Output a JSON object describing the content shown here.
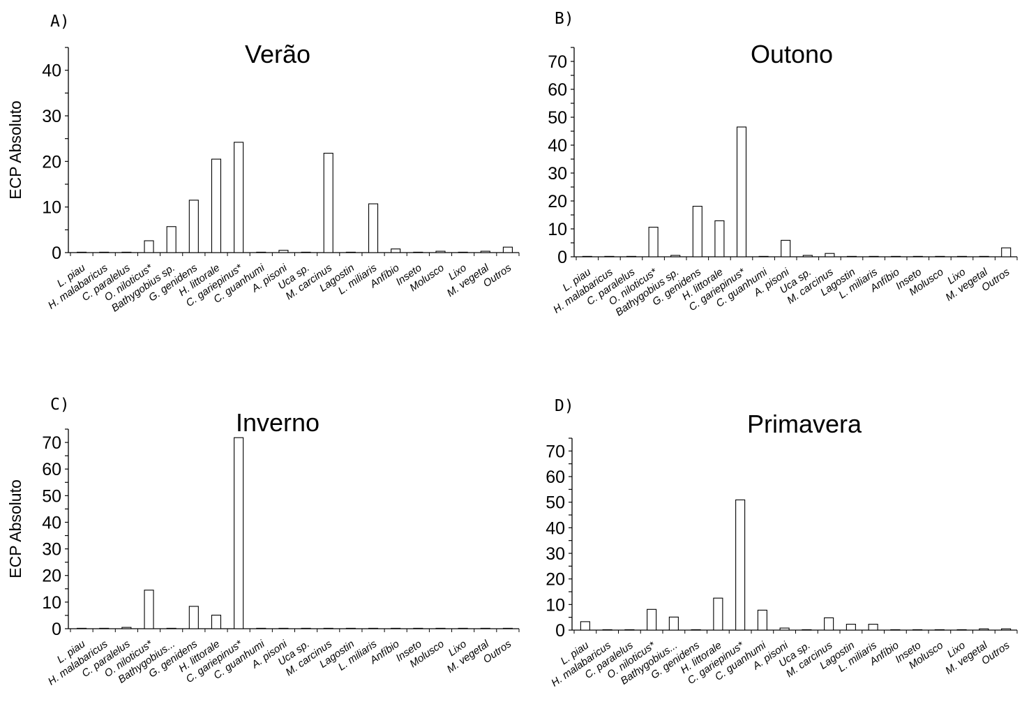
{
  "chart_data": [
    {
      "type": "bar",
      "panel": "A)",
      "title": "Verão",
      "ylabel": "ECP Absoluto",
      "ylim": [
        0,
        45
      ],
      "yticks": [
        0,
        10,
        20,
        30,
        40
      ],
      "categories": [
        "L. piau",
        "H. malabaricus",
        "C. paralelus",
        "O. niloticus*",
        "Bathygobius sp.",
        "G. genidens",
        "H. littorale",
        "C. gariepinus*",
        "C. guanhumi",
        "A. pisoni",
        "Uca sp.",
        "M. carcinus",
        "Lagostin",
        "L. miliaris",
        "Anfíbio",
        "Inseto",
        "Molusco",
        "Lixo",
        "M. vegetal",
        "Outros"
      ],
      "values": [
        0,
        0,
        0,
        2.6,
        5.7,
        11.5,
        20.5,
        24.2,
        0,
        0.5,
        0,
        21.8,
        0,
        10.7,
        0.8,
        0,
        0.3,
        0,
        0.3,
        1.2
      ]
    },
    {
      "type": "bar",
      "panel": "B)",
      "title": "Outono",
      "ylabel": "",
      "ylim": [
        0,
        75
      ],
      "yticks": [
        0,
        10,
        20,
        30,
        40,
        50,
        60,
        70
      ],
      "categories": [
        "L. piau",
        "H. malabaricus",
        "C. paralelus",
        "O. niloticus*",
        "Bathygobius sp.",
        "G. genidens",
        "H. littorale",
        "C. gariepinus*",
        "C. guanhumi",
        "A. pisoni",
        "Uca sp.",
        "M. carcinus",
        "Lagostin",
        "L. miliaris",
        "Anfíbio",
        "Inseto",
        "Molusco",
        "Lixo",
        "M. vegetal",
        "Outros"
      ],
      "values": [
        0,
        0,
        0,
        10.6,
        0.5,
        18.1,
        12.9,
        46.5,
        0,
        5.9,
        0.5,
        1.2,
        0,
        0,
        0,
        0,
        0,
        0,
        0,
        3.2
      ]
    },
    {
      "type": "bar",
      "panel": "C)",
      "title": "Inverno",
      "ylabel": "ECP Absoluto",
      "ylim": [
        0,
        75
      ],
      "yticks": [
        0,
        10,
        20,
        30,
        40,
        50,
        60,
        70
      ],
      "categories": [
        "L. piau",
        "H. malabaricus",
        "C. paralelus",
        "O. niloticus*",
        "Bathygobius...",
        "G. genidens",
        "H. littorale",
        "C. gariepinus*",
        "C. guanhumi",
        "A. pisoni",
        "Uca sp.",
        "M. carcinus",
        "Lagostin",
        "L. miliaris",
        "Anfíbio",
        "Inseto",
        "Molusco",
        "Lixo",
        "M. vegetal",
        "Outros"
      ],
      "values": [
        0,
        0,
        0.5,
        14.5,
        0,
        8.4,
        5.1,
        71.8,
        0,
        0,
        0,
        0,
        0,
        0,
        0,
        0,
        0,
        0,
        0,
        0
      ]
    },
    {
      "type": "bar",
      "panel": "D)",
      "title": "Primavera",
      "ylabel": "",
      "ylim": [
        0,
        75
      ],
      "yticks": [
        0,
        10,
        20,
        30,
        40,
        50,
        60,
        70
      ],
      "categories": [
        "L. piau",
        "H. malabaricus",
        "C. paralelus",
        "O. niloticus*",
        "Bathygobius...",
        "G. genidens",
        "H. littorale",
        "C. gariepinus*",
        "C. guanhumi",
        "A. pisoni",
        "Uca sp.",
        "M. carcinus",
        "Lagostin",
        "L. miliaris",
        "Anfíbio",
        "Inseto",
        "Molusco",
        "Lixo",
        "M. vegetal",
        "Outros"
      ],
      "values": [
        3.3,
        0,
        0,
        8.1,
        5.1,
        0,
        12.5,
        50.9,
        7.8,
        0.8,
        0,
        4.8,
        2.3,
        2.3,
        0,
        0,
        0,
        0,
        0.5,
        0.5
      ]
    }
  ]
}
